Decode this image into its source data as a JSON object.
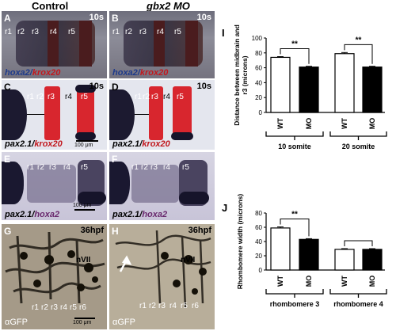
{
  "headers": {
    "control": "Control",
    "mo": "gbx2 MO"
  },
  "panels": [
    {
      "label": "A",
      "time": "10s",
      "stain_a": "hoxa2",
      "stain_sep": "/",
      "stain_b": "krox20",
      "rhombomeres": [
        "r1",
        "r2",
        "r3",
        "r4",
        "r5"
      ]
    },
    {
      "label": "B",
      "time": "10s",
      "stain_a": "hoxa2",
      "stain_sep": "/",
      "stain_b": "krox20",
      "rhombomeres": [
        "r1",
        "r2",
        "r3",
        "r4",
        "r5"
      ]
    },
    {
      "label": "C",
      "time": "10s",
      "stain_a": "pax2.1",
      "stain_sep": "/",
      "stain_b": "krox20",
      "rhombomeres": [
        "r1",
        "r2",
        "r3",
        "r4",
        "r5"
      ],
      "scale": "100 μm"
    },
    {
      "label": "D",
      "time": "10s",
      "stain_a": "pax2.1",
      "stain_sep": "/",
      "stain_b": "krox20",
      "rhombomeres": [
        "r1",
        "r2",
        "r3",
        "r4",
        "r5"
      ]
    },
    {
      "label": "E",
      "stain_a": "pax2.1",
      "stain_sep": "/",
      "stain_b": "hoxa2",
      "rhombomeres": [
        "r1",
        "r2",
        "r3",
        "r4",
        "r5"
      ],
      "scale": "100 μm"
    },
    {
      "label": "F",
      "stain_a": "pax2.1",
      "stain_sep": "/",
      "stain_b": "hoxa2",
      "rhombomeres": [
        "r1",
        "r2",
        "r3",
        "r4",
        "r5"
      ]
    },
    {
      "label": "G",
      "time": "36hpf",
      "stain": "αGFP",
      "nerve": "nVII",
      "rhombomeres": [
        "r1",
        "r2",
        "r3",
        "r4",
        "r5",
        "r6"
      ],
      "scale": "100 μm"
    },
    {
      "label": "H",
      "time": "36hpf",
      "stain": "αGFP",
      "nerve": "nVII",
      "rhombomeres": [
        "r1",
        "r2",
        "r3",
        "r4",
        "r5",
        "r6"
      ]
    }
  ],
  "colors": {
    "purple_stain": "#2a2440",
    "red_stain": "#d8262e",
    "bar_wt": "#ffffff",
    "bar_mo": "#000000"
  },
  "chart_data": [
    {
      "panel_label": "I",
      "type": "bar",
      "ylabel": "Distance between midbrain and r3 (microns)",
      "ylim": [
        0,
        100
      ],
      "yticks": [
        0,
        20,
        40,
        60,
        80,
        100
      ],
      "categories": [
        "WT",
        "MO",
        "WT",
        "MO"
      ],
      "values": [
        74,
        61,
        79,
        61
      ],
      "errors": [
        1,
        1,
        1.5,
        1
      ],
      "bar_colors": [
        "#ffffff",
        "#000000",
        "#ffffff",
        "#000000"
      ],
      "groups": [
        {
          "label": "10 somite",
          "bars": [
            0,
            1
          ]
        },
        {
          "label": "20 somite",
          "bars": [
            2,
            3
          ]
        }
      ],
      "significance": [
        {
          "bars": [
            0,
            1
          ],
          "text": "**"
        },
        {
          "bars": [
            2,
            3
          ],
          "text": "**"
        }
      ]
    },
    {
      "panel_label": "J",
      "type": "bar",
      "ylabel": "Rhombomere width (microns)",
      "ylim": [
        0,
        80
      ],
      "yticks": [
        0,
        20,
        40,
        60,
        80
      ],
      "categories": [
        "WT",
        "MO",
        "WT",
        "MO"
      ],
      "values": [
        59,
        43,
        29,
        29
      ],
      "errors": [
        1.5,
        1,
        1,
        1
      ],
      "bar_colors": [
        "#ffffff",
        "#000000",
        "#ffffff",
        "#000000"
      ],
      "groups": [
        {
          "label": "rhombomere 3",
          "bars": [
            0,
            1
          ]
        },
        {
          "label": "rhombomere 4",
          "bars": [
            2,
            3
          ]
        }
      ],
      "significance": [
        {
          "bars": [
            0,
            1
          ],
          "text": "**"
        },
        {
          "bars": [
            2,
            3
          ],
          "text": ""
        }
      ]
    }
  ]
}
